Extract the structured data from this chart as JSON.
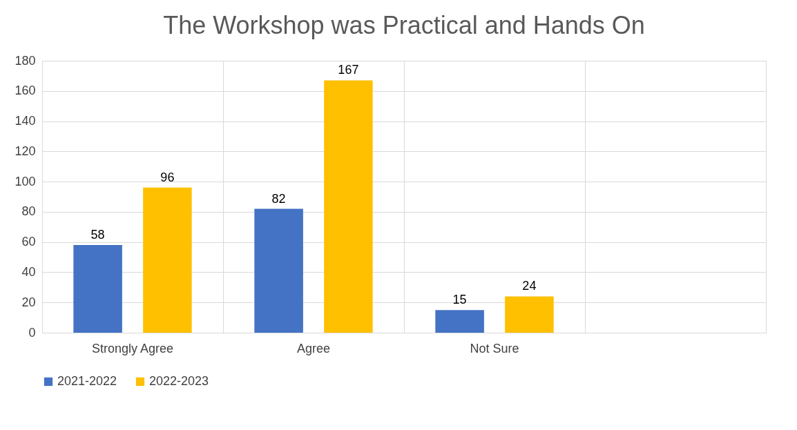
{
  "chart_data": {
    "type": "bar",
    "title": "The Workshop was Practical and Hands On",
    "categories": [
      "Strongly Agree",
      "Agree",
      "Not Sure",
      null
    ],
    "series": [
      {
        "name": "2021-2022",
        "color": "#4472c4",
        "values": [
          58,
          82,
          15,
          null
        ]
      },
      {
        "name": "2022-2023",
        "color": "#ffc000",
        "values": [
          96,
          167,
          24,
          null
        ]
      }
    ],
    "ylim": [
      0,
      180
    ],
    "yticks": [
      0,
      20,
      40,
      60,
      80,
      100,
      120,
      140,
      160,
      180
    ],
    "grid": true,
    "legend": "bottom",
    "data_labels": true
  }
}
